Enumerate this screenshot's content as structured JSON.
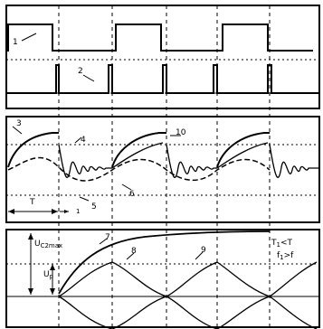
{
  "panel_top": {
    "labels": [
      "1",
      "2"
    ]
  },
  "panel_middle": {
    "labels": [
      "3",
      "4",
      "10",
      "6",
      "5"
    ],
    "period_label": "T",
    "small_label": "1"
  },
  "panel_bottom": {
    "labels": [
      "7",
      "8",
      "9"
    ],
    "ucmax_main": "U",
    "ucmax_sub": "C2max",
    "up_main": "U",
    "up_sub": "p",
    "t1_main": "T",
    "t1_sub": "1",
    "t1_rel": "<T",
    "f1_main": "f",
    "f1_sub": "1",
    "f1_rel": ">f"
  }
}
